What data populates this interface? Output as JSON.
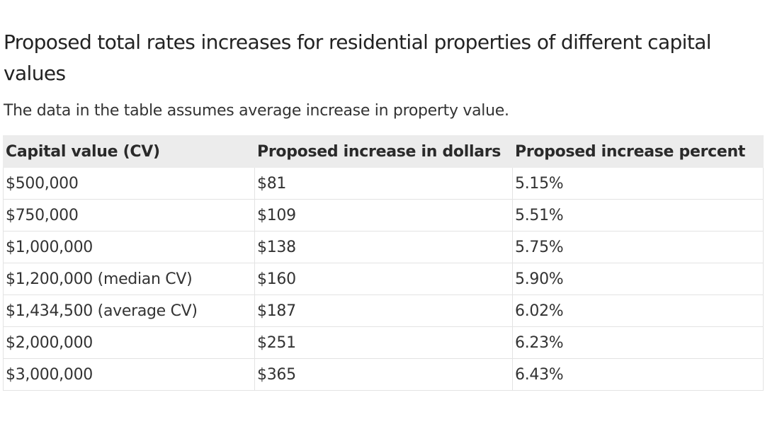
{
  "heading": {
    "title": "Proposed total rates increases for residential properties of different capital values",
    "intro": "The data in the table assumes average increase in property value."
  },
  "table": {
    "headers": [
      "Capital value (CV)",
      "Proposed increase in dollars",
      "Proposed increase percent"
    ],
    "rows": [
      [
        "$500,000",
        "$81",
        "5.15%"
      ],
      [
        "$750,000",
        "$109",
        "5.51%"
      ],
      [
        "$1,000,000",
        "$138",
        "5.75%"
      ],
      [
        "$1,200,000 (median CV)",
        "$160",
        "5.90%"
      ],
      [
        "$1,434,500 (average CV)",
        "$187",
        "6.02%"
      ],
      [
        "$2,000,000",
        "$251",
        "6.23%"
      ],
      [
        "$3,000,000",
        "$365",
        "6.43%"
      ]
    ]
  },
  "colors": {
    "header_background": "#ececec",
    "border": "#e3e3e3",
    "text": "#333333"
  }
}
